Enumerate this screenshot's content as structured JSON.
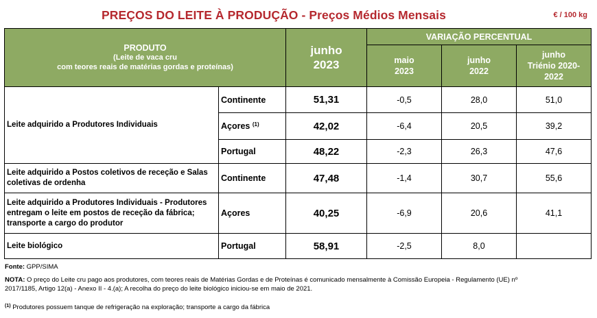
{
  "title": "PREÇOS DO LEITE À PRODUÇÃO",
  "title_separator": " - ",
  "subtitle": "Preços Médios Mensais",
  "unit": "€ / 100 kg",
  "header": {
    "produto": "PRODUTO",
    "produto_line2": "(Leite de vaca cru",
    "produto_line3": "com teores reais de matérias gordas e proteínas)",
    "current_month": "junho",
    "current_year": "2023",
    "variacao": "VARIAÇÃO PERCENTUAL",
    "col_maio_l1": "maio",
    "col_maio_l2": "2023",
    "col_jun22_l1": "junho",
    "col_jun22_l2": "2022",
    "col_tri_l1": "junho",
    "col_tri_l2": "Triénio 2020-",
    "col_tri_l3": "2022"
  },
  "groups": {
    "g1": "Leite adquirido a Produtores Individuais",
    "g2": "Leite adquirido a Postos coletivos de receção e Salas coletivas de ordenha",
    "g3": "Leite adquirido a Produtores Individuais - Produtores entregam o leite em postos de receção da fábrica; transporte a cargo do produtor",
    "g4": "Leite biológico"
  },
  "rows": [
    {
      "region": "Continente",
      "price": "51,31",
      "maio": "-0,5",
      "jun22": "28,0",
      "tri": "51,0"
    },
    {
      "region": "Açores",
      "note": "(1)",
      "price": "42,02",
      "maio": "-6,4",
      "jun22": "20,5",
      "tri": "39,2"
    },
    {
      "region": "Portugal",
      "price": "48,22",
      "maio": "-2,3",
      "jun22": "26,3",
      "tri": "47,6"
    },
    {
      "region": "Continente",
      "price": "47,48",
      "maio": "-1,4",
      "jun22": "30,7",
      "tri": "55,6"
    },
    {
      "region": "Açores",
      "price": "40,25",
      "maio": "-6,9",
      "jun22": "20,6",
      "tri": "41,1"
    },
    {
      "region": "Portugal",
      "price": "58,91",
      "maio": "-2,5",
      "jun22": "8,0",
      "tri": ""
    }
  ],
  "footer": {
    "source_label": "Fonte:",
    "source": "GPP/SIMA",
    "nota_label": "NOTA:",
    "nota_line1": "O preço do Leite cru pago aos produtores, com teores reais de Matérias Gordas e de Proteínas é comunicado mensalmente à Comissão Europeia - Regulamento (UE) nº",
    "nota_line2": "2017/1185, Artigo 12(a) - Anexo II - 4.(a); A recolha do preço do leite biológico iniciou-se em maio de 2021.",
    "footnote_mark": "(1)",
    "footnote": "Produtores possuem tanque de refrigeração na exploração; transporte a cargo da fábrica"
  },
  "colors": {
    "header_bg": "#8eaa63",
    "title": "#b5282e"
  }
}
